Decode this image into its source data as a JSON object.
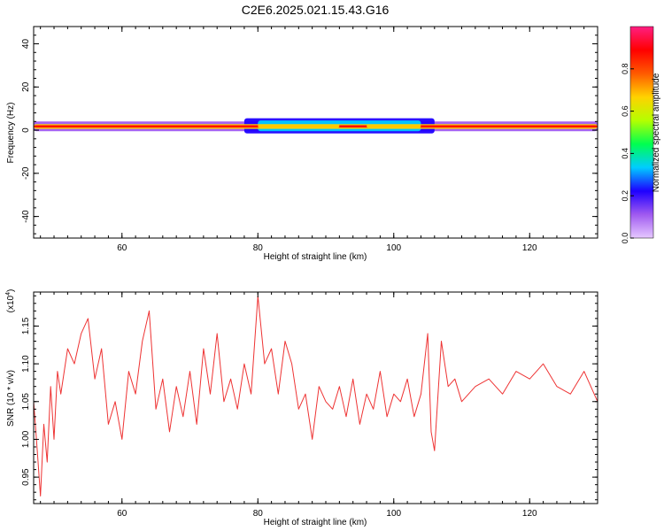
{
  "title": "C2E6.2025.021.15.43.G16",
  "chart_data": [
    {
      "type": "heatmap",
      "xlabel": "Height of straight line (km)",
      "ylabel": "Frequency (Hz)",
      "xlim": [
        47,
        130
      ],
      "ylim": [
        -50,
        48
      ],
      "xticks": [
        60,
        80,
        100,
        120
      ],
      "yticks": [
        -40,
        -20,
        0,
        20,
        40
      ],
      "yticklabels": [
        "-40",
        "-20",
        "0",
        "20",
        "40"
      ],
      "grid": false,
      "colorbar": {
        "label": "Normalized spectral amplitude",
        "range": [
          0,
          1
        ],
        "ticks": [
          0.0,
          0.2,
          0.4,
          0.6,
          0.8
        ],
        "ticklabels": [
          "0.0",
          "0.2",
          "0.4",
          "0.6",
          "0.8"
        ],
        "colors": [
          "#e6c8ff",
          "#a05af0",
          "#1e00ff",
          "#00ccff",
          "#00ff50",
          "#b4ff00",
          "#ffd200",
          "#ff5a00",
          "#ff0000",
          "#ff1e82"
        ]
      },
      "bands": [
        {
          "x": [
            47,
            130
          ],
          "y": [
            -0.5,
            4
          ],
          "level": 0.12
        },
        {
          "x": [
            78,
            106
          ],
          "y": [
            -1.5,
            5.5
          ],
          "level": 0.2
        },
        {
          "x": [
            80,
            104
          ],
          "y": [
            -0.5,
            4.5
          ],
          "level": 0.32
        },
        {
          "x": [
            47,
            130
          ],
          "y": [
            0.6,
            2.8
          ],
          "level": 0.62
        },
        {
          "x": [
            47,
            130
          ],
          "y": [
            1.2,
            2.3
          ],
          "level": 0.88
        },
        {
          "x": [
            80,
            92
          ],
          "y": [
            1.0,
            2.6
          ],
          "level": 0.72
        },
        {
          "x": [
            96,
            104
          ],
          "y": [
            1.0,
            2.6
          ],
          "level": 0.72
        }
      ]
    },
    {
      "type": "line",
      "xlabel": "Height of straight line (km)",
      "ylabel": "SNR (10 * v/v)",
      "yscale_label": "(x10",
      "yscale_exp": "4",
      "yscale_close": ")",
      "xlim": [
        47,
        130
      ],
      "ylim": [
        0.915,
        1.195
      ],
      "xticks": [
        60,
        80,
        100,
        120
      ],
      "yticks": [
        0.95,
        1.0,
        1.05,
        1.1,
        1.15
      ],
      "yticklabels": [
        "0.95",
        "1.00",
        "1.05",
        "1.10",
        "1.15"
      ],
      "grid": false,
      "color": "#ee3333",
      "series": [
        {
          "x": [
            47,
            47.5,
            48,
            48.5,
            49,
            49.5,
            50,
            50.5,
            51,
            52,
            53,
            54,
            55,
            56,
            57,
            58,
            59,
            60,
            61,
            62,
            63,
            64,
            65,
            66,
            67,
            68,
            69,
            70,
            71,
            72,
            73,
            74,
            75,
            76,
            77,
            78,
            79,
            80,
            81,
            82,
            83,
            84,
            85,
            86,
            87,
            88,
            89,
            90,
            91,
            92,
            93,
            94,
            95,
            96,
            97,
            98,
            99,
            100,
            101,
            102,
            103,
            104,
            105,
            105.5,
            106,
            107,
            108,
            109,
            110,
            112,
            114,
            116,
            118,
            120,
            122,
            124,
            126,
            128,
            130
          ],
          "y": [
            1.05,
            0.99,
            0.925,
            1.02,
            0.97,
            1.07,
            1.0,
            1.09,
            1.06,
            1.12,
            1.1,
            1.14,
            1.16,
            1.08,
            1.12,
            1.02,
            1.05,
            1.0,
            1.09,
            1.06,
            1.13,
            1.17,
            1.04,
            1.08,
            1.01,
            1.07,
            1.03,
            1.09,
            1.02,
            1.12,
            1.06,
            1.14,
            1.05,
            1.08,
            1.04,
            1.1,
            1.06,
            1.19,
            1.1,
            1.12,
            1.06,
            1.13,
            1.1,
            1.04,
            1.06,
            1.0,
            1.07,
            1.05,
            1.04,
            1.07,
            1.03,
            1.08,
            1.02,
            1.06,
            1.04,
            1.09,
            1.03,
            1.06,
            1.05,
            1.08,
            1.03,
            1.06,
            1.14,
            1.01,
            0.985,
            1.13,
            1.07,
            1.08,
            1.05,
            1.07,
            1.08,
            1.06,
            1.09,
            1.08,
            1.1,
            1.07,
            1.06,
            1.09,
            1.05
          ]
        }
      ]
    }
  ]
}
